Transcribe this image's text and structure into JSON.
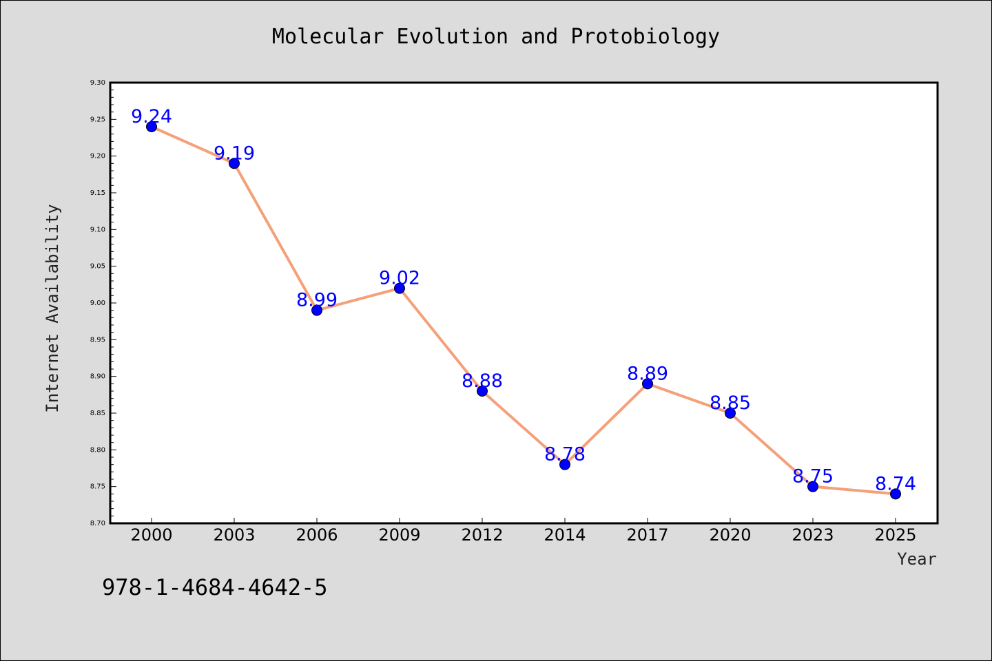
{
  "chart_data": {
    "type": "line",
    "title": "Molecular Evolution and Protobiology",
    "xlabel": "Year",
    "ylabel": "Internet Availability",
    "categories": [
      "2000",
      "2003",
      "2006",
      "2009",
      "2012",
      "2014",
      "2017",
      "2020",
      "2023",
      "2025"
    ],
    "values": [
      9.24,
      9.19,
      8.99,
      9.02,
      8.88,
      8.78,
      8.89,
      8.85,
      8.75,
      8.74
    ],
    "data_labels": [
      "9.24",
      "9.19",
      "8.99",
      "9.02",
      "8.88",
      "8.78",
      "8.89",
      "8.85",
      "8.75",
      "8.74"
    ],
    "ylim": [
      8.7,
      9.3
    ],
    "yticks": [
      "8.70",
      "8.75",
      "8.80",
      "8.85",
      "8.90",
      "8.95",
      "9.00",
      "9.05",
      "9.10",
      "9.15",
      "9.20",
      "9.25",
      "9.30"
    ],
    "grid": false,
    "legend": "none",
    "colors": {
      "line": "#f4a07a",
      "marker": "#0000ff",
      "data_label": "#0000ff",
      "background": "#dcdcdc",
      "plot_background": "#ffffff"
    }
  },
  "annotation": {
    "isbn": "978-1-4684-4642-5"
  }
}
